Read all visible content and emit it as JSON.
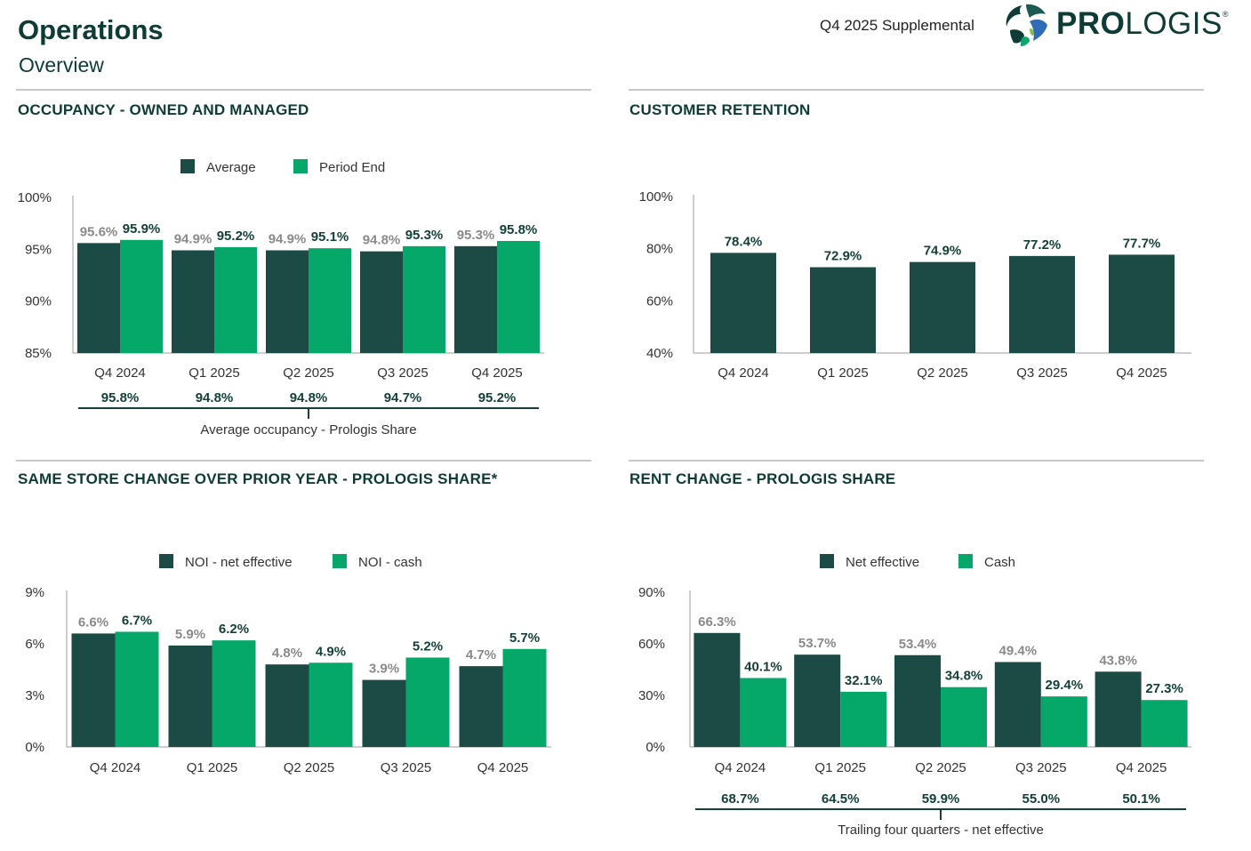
{
  "header": {
    "title": "Operations",
    "subtitle": "Overview",
    "supplemental": "Q4 2025 Supplemental",
    "logo_text": "PROLOGIS"
  },
  "colors": {
    "dark": "#1c4a45",
    "green": "#06a86a",
    "gray_label": "#8a8a8a",
    "text_dark": "#14403a"
  },
  "sections": {
    "occupancy": "OCCUPANCY - OWNED AND MANAGED",
    "retention": "CUSTOMER RETENTION",
    "same_store": "SAME STORE CHANGE OVER PRIOR YEAR - PROLOGIS SHARE*",
    "rent_change": "RENT CHANGE - PROLOGIS SHARE"
  },
  "chart_data": [
    {
      "id": "occupancy",
      "type": "bar",
      "title": "OCCUPANCY - OWNED AND MANAGED",
      "categories": [
        "Q4 2024",
        "Q1 2025",
        "Q2 2025",
        "Q3 2025",
        "Q4 2025"
      ],
      "series": [
        {
          "name": "Average",
          "values": [
            95.6,
            94.9,
            94.9,
            94.8,
            95.3
          ],
          "labels": [
            "95.6%",
            "94.9%",
            "94.9%",
            "94.8%",
            "95.3%"
          ]
        },
        {
          "name": "Period End",
          "values": [
            95.9,
            95.2,
            95.1,
            95.3,
            95.8
          ],
          "labels": [
            "95.9%",
            "95.2%",
            "95.1%",
            "95.3%",
            "95.8%"
          ]
        }
      ],
      "ylim": [
        85,
        100
      ],
      "yticks": [
        "85%",
        "90%",
        "95%",
        "100%"
      ],
      "ytick_values": [
        85,
        90,
        95,
        100
      ],
      "footer_values": [
        "95.8%",
        "94.8%",
        "94.8%",
        "94.7%",
        "95.2%"
      ],
      "footer_label": "Average occupancy - Prologis Share"
    },
    {
      "id": "retention",
      "type": "bar",
      "title": "CUSTOMER RETENTION",
      "categories": [
        "Q4 2024",
        "Q1 2025",
        "Q2 2025",
        "Q3 2025",
        "Q4 2025"
      ],
      "series": [
        {
          "name": "Customer retention",
          "values": [
            78.4,
            72.9,
            74.9,
            77.2,
            77.7
          ],
          "labels": [
            "78.4%",
            "72.9%",
            "74.9%",
            "77.2%",
            "77.7%"
          ]
        }
      ],
      "ylim": [
        40,
        100
      ],
      "yticks": [
        "40%",
        "60%",
        "80%",
        "100%"
      ],
      "ytick_values": [
        40,
        60,
        80,
        100
      ]
    },
    {
      "id": "same_store",
      "type": "bar",
      "title": "SAME STORE CHANGE OVER PRIOR YEAR - PROLOGIS SHARE*",
      "categories": [
        "Q4 2024",
        "Q1 2025",
        "Q2 2025",
        "Q3 2025",
        "Q4 2025"
      ],
      "series": [
        {
          "name": "NOI - net effective",
          "values": [
            6.6,
            5.9,
            4.8,
            3.9,
            4.7
          ],
          "labels": [
            "6.6%",
            "5.9%",
            "4.8%",
            "3.9%",
            "4.7%"
          ]
        },
        {
          "name": "NOI - cash",
          "values": [
            6.7,
            6.2,
            4.9,
            5.2,
            5.7
          ],
          "labels": [
            "6.7%",
            "6.2%",
            "4.9%",
            "5.2%",
            "5.7%"
          ]
        }
      ],
      "ylim": [
        0,
        9
      ],
      "yticks": [
        "0%",
        "3%",
        "6%",
        "9%"
      ],
      "ytick_values": [
        0,
        3,
        6,
        9
      ]
    },
    {
      "id": "rent_change",
      "type": "bar",
      "title": "RENT CHANGE - PROLOGIS SHARE",
      "categories": [
        "Q4 2024",
        "Q1 2025",
        "Q2 2025",
        "Q3 2025",
        "Q4 2025"
      ],
      "series": [
        {
          "name": "Net effective",
          "values": [
            66.3,
            53.7,
            53.4,
            49.4,
            43.8
          ],
          "labels": [
            "66.3%",
            "53.7%",
            "53.4%",
            "49.4%",
            "43.8%"
          ]
        },
        {
          "name": "Cash",
          "values": [
            40.1,
            32.1,
            34.8,
            29.4,
            27.3
          ],
          "labels": [
            "40.1%",
            "32.1%",
            "34.8%",
            "29.4%",
            "27.3%"
          ]
        }
      ],
      "ylim": [
        0,
        90
      ],
      "yticks": [
        "0%",
        "30%",
        "60%",
        "90%"
      ],
      "ytick_values": [
        0,
        30,
        60,
        90
      ],
      "footer_values": [
        "68.7%",
        "64.5%",
        "59.9%",
        "55.0%",
        "50.1%"
      ],
      "footer_label": "Trailing four quarters - net effective"
    }
  ]
}
